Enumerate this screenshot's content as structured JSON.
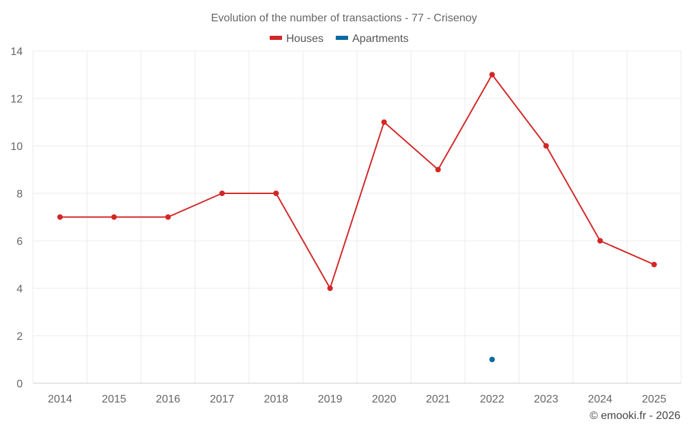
{
  "chart_data": {
    "type": "line",
    "title": "Evolution of the number of transactions - 77 - Crisenoy",
    "xlabel": "",
    "ylabel": "",
    "categories": [
      "2014",
      "2015",
      "2016",
      "2017",
      "2018",
      "2019",
      "2020",
      "2021",
      "2022",
      "2023",
      "2024",
      "2025"
    ],
    "yticks": [
      "0",
      "2",
      "4",
      "6",
      "8",
      "10",
      "12",
      "14"
    ],
    "ylim": [
      0,
      14
    ],
    "grid": true,
    "legend_position": "top-center",
    "series": [
      {
        "name": "Houses",
        "color": "#d32626",
        "values": [
          7,
          7,
          7,
          8,
          8,
          4,
          11,
          9,
          13,
          10,
          6,
          5
        ]
      },
      {
        "name": "Apartments",
        "color": "#0a6aa1",
        "values": [
          null,
          null,
          null,
          null,
          null,
          null,
          null,
          null,
          1,
          null,
          null,
          null
        ]
      }
    ]
  },
  "credit": "© emooki.fr - 2026"
}
